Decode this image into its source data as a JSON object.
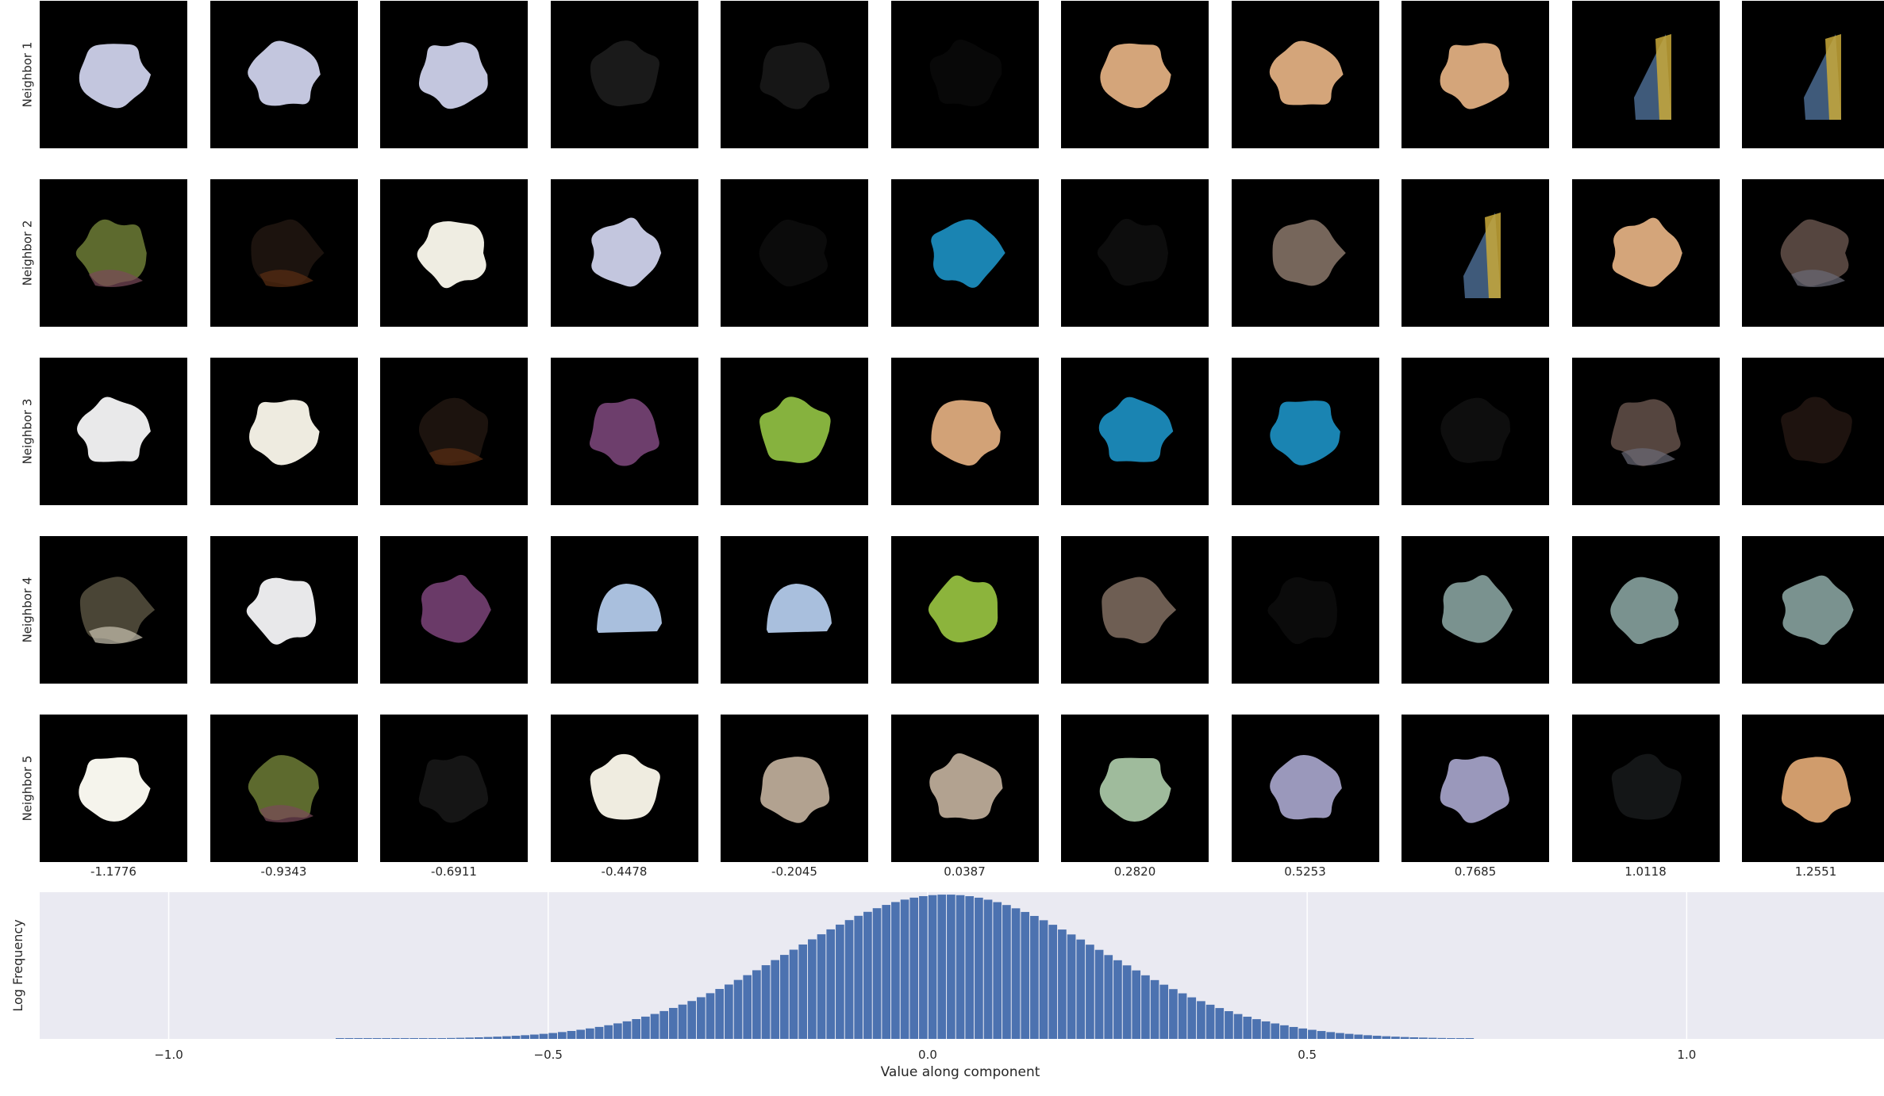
{
  "row_labels": [
    "Neighbor 1",
    "Neighbor 2",
    "Neighbor 3",
    "Neighbor 4",
    "Neighbor 5"
  ],
  "column_values": [
    "-1.1776",
    "-0.9343",
    "-0.6911",
    "-0.4478",
    "-0.2045",
    "0.0387",
    "0.2820",
    "0.5253",
    "0.7685",
    "1.0118",
    "1.2551"
  ],
  "tiles": [
    [
      {
        "color": "#c3c6de",
        "shape": "blob"
      },
      {
        "color": "#c3c6de",
        "shape": "blob"
      },
      {
        "color": "#c3c6de",
        "shape": "blob"
      },
      {
        "color": "#1a1a1a",
        "shape": "blob"
      },
      {
        "color": "#161616",
        "shape": "blob"
      },
      {
        "color": "#080808",
        "shape": "blob"
      },
      {
        "color": "#d4a57a",
        "shape": "blob"
      },
      {
        "color": "#d4a57a",
        "shape": "blob"
      },
      {
        "color": "#d4a57a",
        "shape": "blob"
      },
      {
        "color": "#3f5a7a",
        "accent": "#c9a93a",
        "shape": "shard"
      },
      {
        "color": "#3f5a7a",
        "accent": "#c9a93a",
        "shape": "shard"
      }
    ],
    [
      {
        "color": "#5d6a2e",
        "accent": "#7a4a5a",
        "shape": "blob"
      },
      {
        "color": "#1c130e",
        "accent": "#5a2e12",
        "shape": "blob"
      },
      {
        "color": "#efede2",
        "shape": "blob"
      },
      {
        "color": "#c3c6de",
        "shape": "blob"
      },
      {
        "color": "#0b0b0b",
        "shape": "blob"
      },
      {
        "color": "#1a84b2",
        "shape": "blob"
      },
      {
        "color": "#0d0d0d",
        "shape": "blob"
      },
      {
        "color": "#76665b",
        "shape": "blob"
      },
      {
        "color": "#3f5a7a",
        "accent": "#c9a93a",
        "shape": "shard"
      },
      {
        "color": "#d4a57a",
        "shape": "blob"
      },
      {
        "color": "#55453f",
        "accent": "#6a6a76",
        "shape": "blob"
      }
    ],
    [
      {
        "color": "#e9e9ea",
        "shape": "blob"
      },
      {
        "color": "#eeebe0",
        "shape": "blob"
      },
      {
        "color": "#1c130e",
        "accent": "#5a2e12",
        "shape": "blob"
      },
      {
        "color": "#6d3e6c",
        "shape": "blob"
      },
      {
        "color": "#86b23e",
        "shape": "blob"
      },
      {
        "color": "#d2a277",
        "shape": "blob"
      },
      {
        "color": "#1a84b2",
        "shape": "blob"
      },
      {
        "color": "#1a84b2",
        "shape": "blob"
      },
      {
        "color": "#0e0e0e",
        "shape": "blob"
      },
      {
        "color": "#55453f",
        "accent": "#6a6a76",
        "shape": "blob"
      },
      {
        "color": "#1e130f",
        "shape": "blob"
      }
    ],
    [
      {
        "color": "#4a4536",
        "accent": "#c9c3b0",
        "shape": "blob"
      },
      {
        "color": "#e8e8ea",
        "shape": "blob"
      },
      {
        "color": "#6a3a68",
        "shape": "blob"
      },
      {
        "color": "#a9bfdd",
        "shape": "dome"
      },
      {
        "color": "#a9bfdd",
        "shape": "dome"
      },
      {
        "color": "#8cb43c",
        "shape": "blob"
      },
      {
        "color": "#6e5e53",
        "shape": "blob"
      },
      {
        "color": "#0b0b0b",
        "shape": "blob"
      },
      {
        "color": "#7a928f",
        "shape": "blob"
      },
      {
        "color": "#7a928f",
        "shape": "blob"
      },
      {
        "color": "#7a928f",
        "shape": "blob"
      }
    ],
    [
      {
        "color": "#f5f4ec",
        "shape": "blob"
      },
      {
        "color": "#5d6a2e",
        "accent": "#7a4a5a",
        "shape": "blob"
      },
      {
        "color": "#151515",
        "shape": "blob"
      },
      {
        "color": "#efece0",
        "shape": "blob"
      },
      {
        "color": "#b2a290",
        "shape": "blob"
      },
      {
        "color": "#b2a290",
        "shape": "blob"
      },
      {
        "color": "#9fbb9c",
        "shape": "blob"
      },
      {
        "color": "#9a98bb",
        "shape": "blob"
      },
      {
        "color": "#9a98bb",
        "shape": "blob"
      },
      {
        "color": "#141617",
        "shape": "blob"
      },
      {
        "color": "#d09c6c",
        "shape": "blob"
      }
    ]
  ],
  "chart_data": {
    "type": "bar",
    "title": "",
    "xlabel": "Value along component",
    "ylabel": "Log Frequency",
    "xlim": [
      -1.17,
      1.26
    ],
    "x_ticks": [
      -1.0,
      -0.5,
      0.0,
      0.5,
      1.0
    ],
    "x_tick_labels": [
      "−1.0",
      "−0.5",
      "0.0",
      "0.5",
      "1.0"
    ],
    "grid": true,
    "bin_width": 0.0122,
    "bins": {
      "x_start": -0.78,
      "x_end": 0.72,
      "center": 0.025,
      "peak": 1.0,
      "sigma": 0.205
    },
    "bar_color": "#4c72b0",
    "plot_background": "#eaeaf2"
  }
}
